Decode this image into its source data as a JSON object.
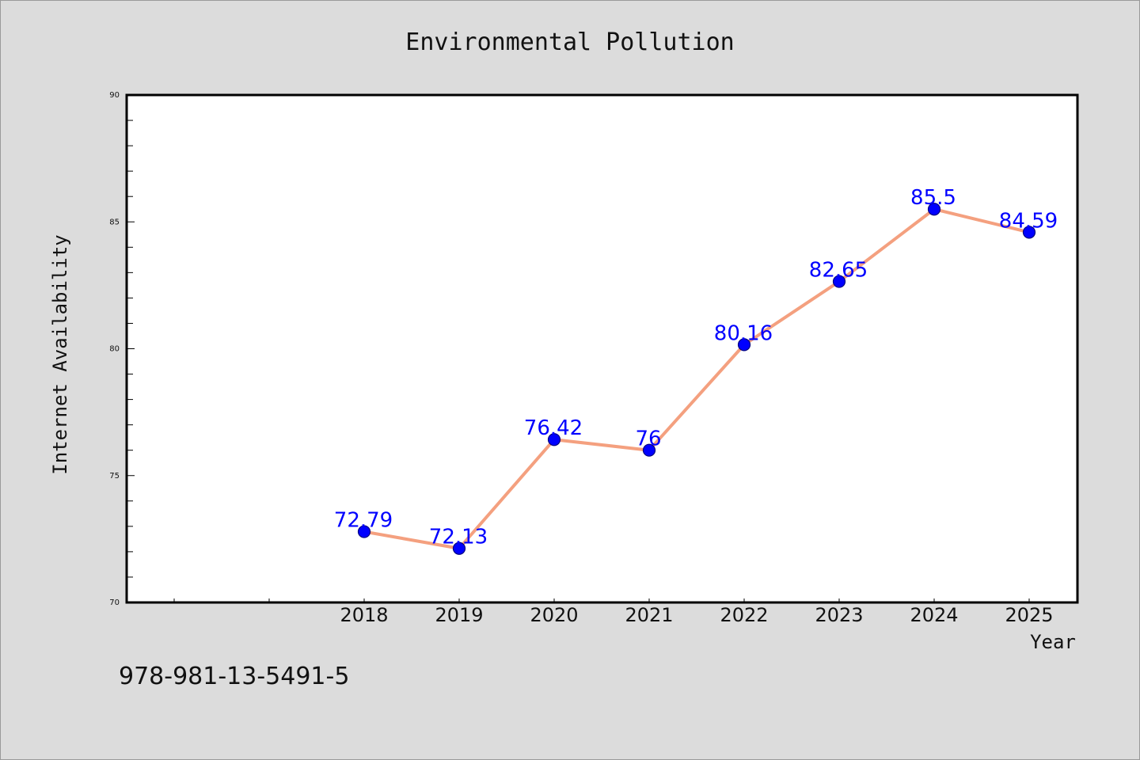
{
  "chart_data": {
    "type": "line",
    "title": "Environmental Pollution",
    "xlabel": "Year",
    "ylabel": "Internet Availability",
    "x": [
      "2018",
      "2019",
      "2020",
      "2021",
      "2022",
      "2023",
      "2024",
      "2025"
    ],
    "series": [
      {
        "values": [
          72.79,
          72.13,
          76.42,
          76,
          80.16,
          82.65,
          85.5,
          84.59
        ],
        "data_labels": [
          "72.79",
          "72.13",
          "76.42",
          "76",
          "80.16",
          "82.65",
          "85.5",
          "84.59"
        ]
      }
    ],
    "ylim": [
      70,
      90
    ],
    "yticks": [
      "70",
      "75",
      "80",
      "85",
      "90"
    ],
    "grid": false,
    "legend": "none",
    "colors": {
      "line": "#f4a07f",
      "marker": "#0000ff",
      "marker_edge": "#000080",
      "data_label": "#0000ff",
      "plot_background": "#ffffff",
      "figure_background": "#dcdcdc"
    },
    "annotation": "978-981-13-5491-5"
  }
}
